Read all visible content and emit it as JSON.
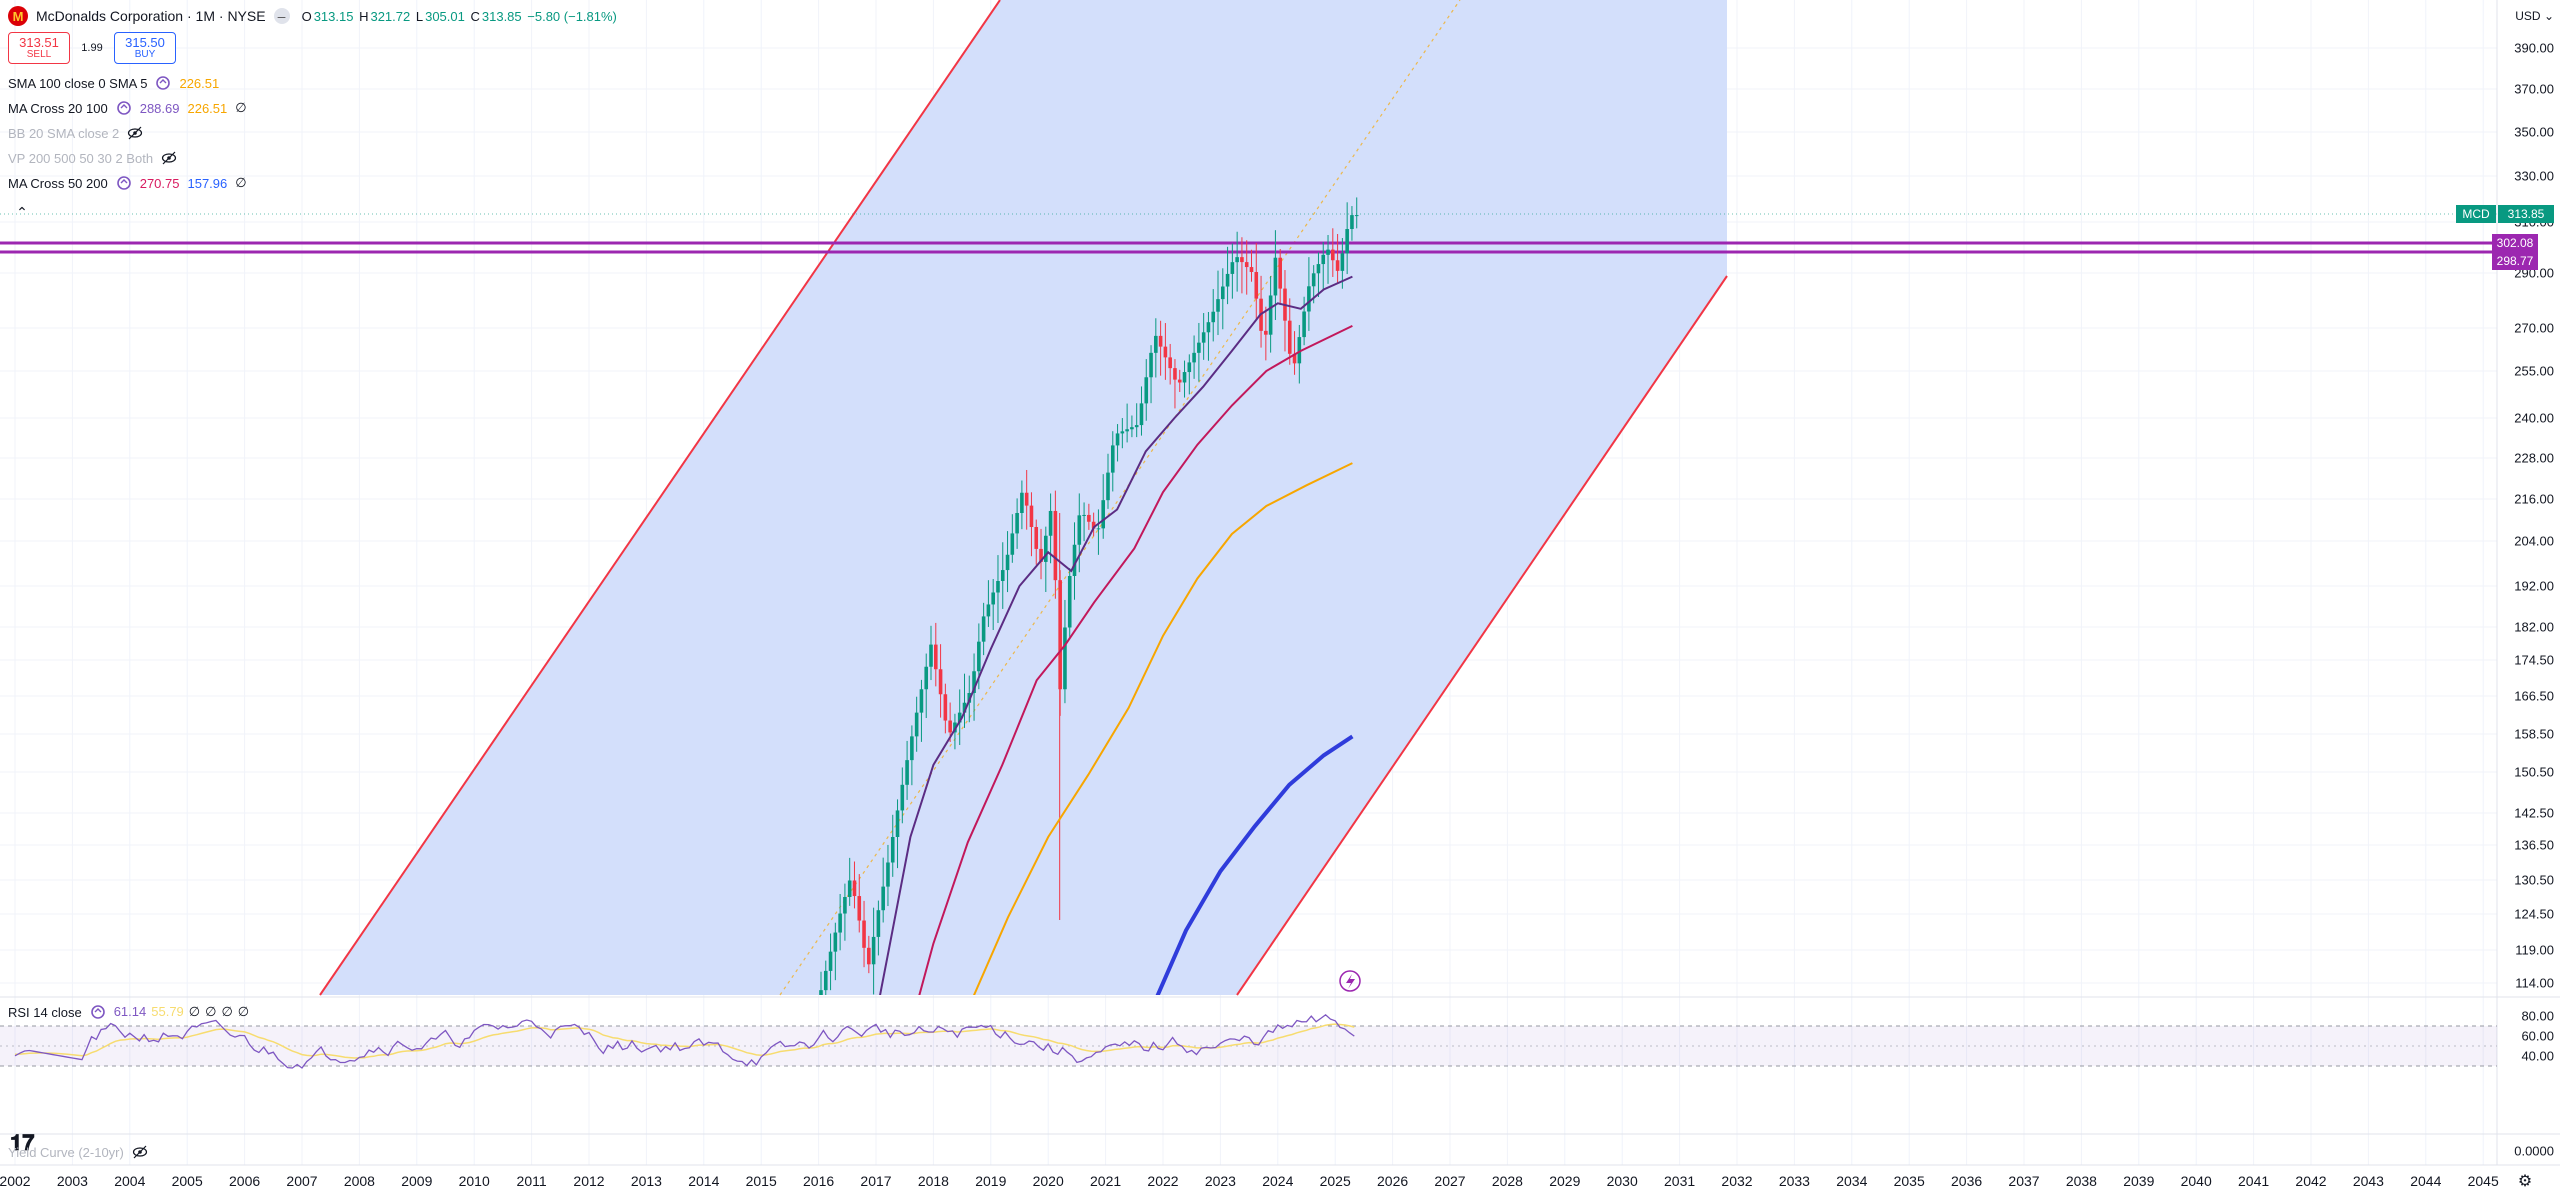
{
  "symbol": {
    "name": "McDonalds Corporation",
    "interval": "1M",
    "exchange": "NYSE",
    "separator": "·",
    "logo_letter": "M",
    "ohlc": {
      "o_label": "O",
      "o": "313.15",
      "h_label": "H",
      "h": "321.72",
      "l_label": "L",
      "l": "305.01",
      "c_label": "C",
      "c": "313.85",
      "change": "−5.80 (−1.81%)"
    }
  },
  "trade": {
    "sell_price": "313.51",
    "sell_label": "SELL",
    "spread": "1.99",
    "buy_price": "315.50",
    "buy_label": "BUY"
  },
  "indicators": [
    {
      "name": "SMA 100 close 0 SMA 5",
      "values": [
        "226.51"
      ],
      "colors": [
        "#f7a600"
      ]
    },
    {
      "name": "MA Cross 20 100",
      "values": [
        "288.69",
        "226.51",
        "∅"
      ],
      "colors": [
        "#7e57c2",
        "#f7a600",
        "#131722"
      ]
    },
    {
      "name": "BB 20 SMA close 2",
      "values": [],
      "colors": [],
      "hidden": true
    },
    {
      "name": "VP 200 500 50 30 2 Both",
      "values": [],
      "colors": [],
      "hidden": true
    },
    {
      "name": "MA Cross 50 200",
      "values": [
        "270.75",
        "157.96",
        "∅"
      ],
      "colors": [
        "#d81b60",
        "#2962ff",
        "#131722"
      ]
    }
  ],
  "currency": "USD",
  "price_axis": [
    "390.00",
    "370.00",
    "350.00",
    "330.00",
    "310.00",
    "290.00",
    "270.00",
    "255.00",
    "240.00",
    "228.00",
    "216.00",
    "204.00",
    "192.00",
    "182.00",
    "174.50",
    "166.50",
    "158.50",
    "150.50",
    "142.50",
    "136.50",
    "130.50",
    "124.50",
    "119.00",
    "114.00"
  ],
  "price_tags": {
    "symbol_tag": "MCD",
    "last_price": "313.85",
    "line1": "302.08",
    "line2": "298.77"
  },
  "rsi": {
    "name": "RSI 14 close",
    "values": [
      "61.14",
      "55.79",
      "∅",
      "∅",
      "∅",
      "∅"
    ],
    "axis": [
      "80.00",
      "60.00",
      "40.00"
    ]
  },
  "yield_curve": {
    "name": "Yield Curve (2-10yr)",
    "axis": [
      "0.0000"
    ]
  },
  "time_axis": [
    "2002",
    "2003",
    "2004",
    "2005",
    "2006",
    "2007",
    "2008",
    "2009",
    "2010",
    "2011",
    "2012",
    "2013",
    "2014",
    "2015",
    "2016",
    "2017",
    "2018",
    "2019",
    "2020",
    "2021",
    "2022",
    "2023",
    "2024",
    "2025",
    "2026",
    "2027",
    "2028",
    "2029",
    "2030",
    "2031",
    "2032",
    "2033",
    "2034",
    "2035",
    "2036",
    "2037",
    "2038",
    "2039",
    "2040",
    "2041",
    "2042",
    "2043",
    "2044",
    "2045"
  ],
  "colors": {
    "up": "#089981",
    "down": "#f23645",
    "channel_fill": "#d1ddfb",
    "channel_edge": "#f23645",
    "horizontal_lines": "#9c27b0",
    "ma20": "#5b2c83",
    "ma50": "#c2185b",
    "ma100": "#f7a600",
    "ma200": "#2f3cdb",
    "rsi_line": "#7e57c2",
    "rsi_ma": "#f7dc6f"
  }
}
